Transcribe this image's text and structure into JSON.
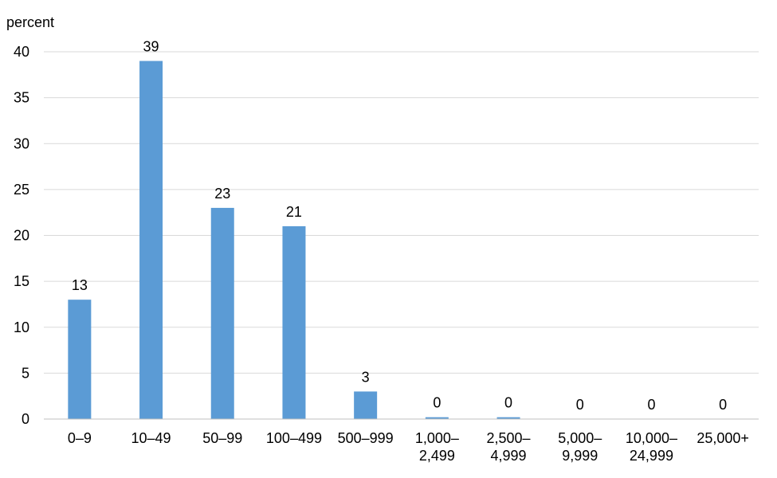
{
  "chart_data": {
    "type": "bar",
    "ylabel": "percent",
    "categories": [
      [
        "0–9"
      ],
      [
        "10–49"
      ],
      [
        "50–99"
      ],
      [
        "100–499"
      ],
      [
        "500–999"
      ],
      [
        "1,000–",
        "2,499"
      ],
      [
        "2,500–",
        "4,999"
      ],
      [
        "5,000–",
        "9,999"
      ],
      [
        "10,000–",
        "24,999"
      ],
      [
        "25,000+"
      ]
    ],
    "values": [
      13,
      39,
      23,
      21,
      3,
      0.2,
      0.2,
      0.0,
      0.0,
      0.0
    ],
    "data_labels": [
      "13",
      "39",
      "23",
      "21",
      "3",
      "0",
      "0",
      "0",
      "0",
      "0"
    ],
    "ylim": [
      0,
      40
    ],
    "yticks": [
      "0",
      "5",
      "10",
      "15",
      "20",
      "25",
      "30",
      "35",
      "40"
    ],
    "grid": true,
    "legend": "none",
    "bar_color": "#5b9bd5",
    "grid_color": "#d9d9d9",
    "axis_color": "#bfbfbf"
  }
}
